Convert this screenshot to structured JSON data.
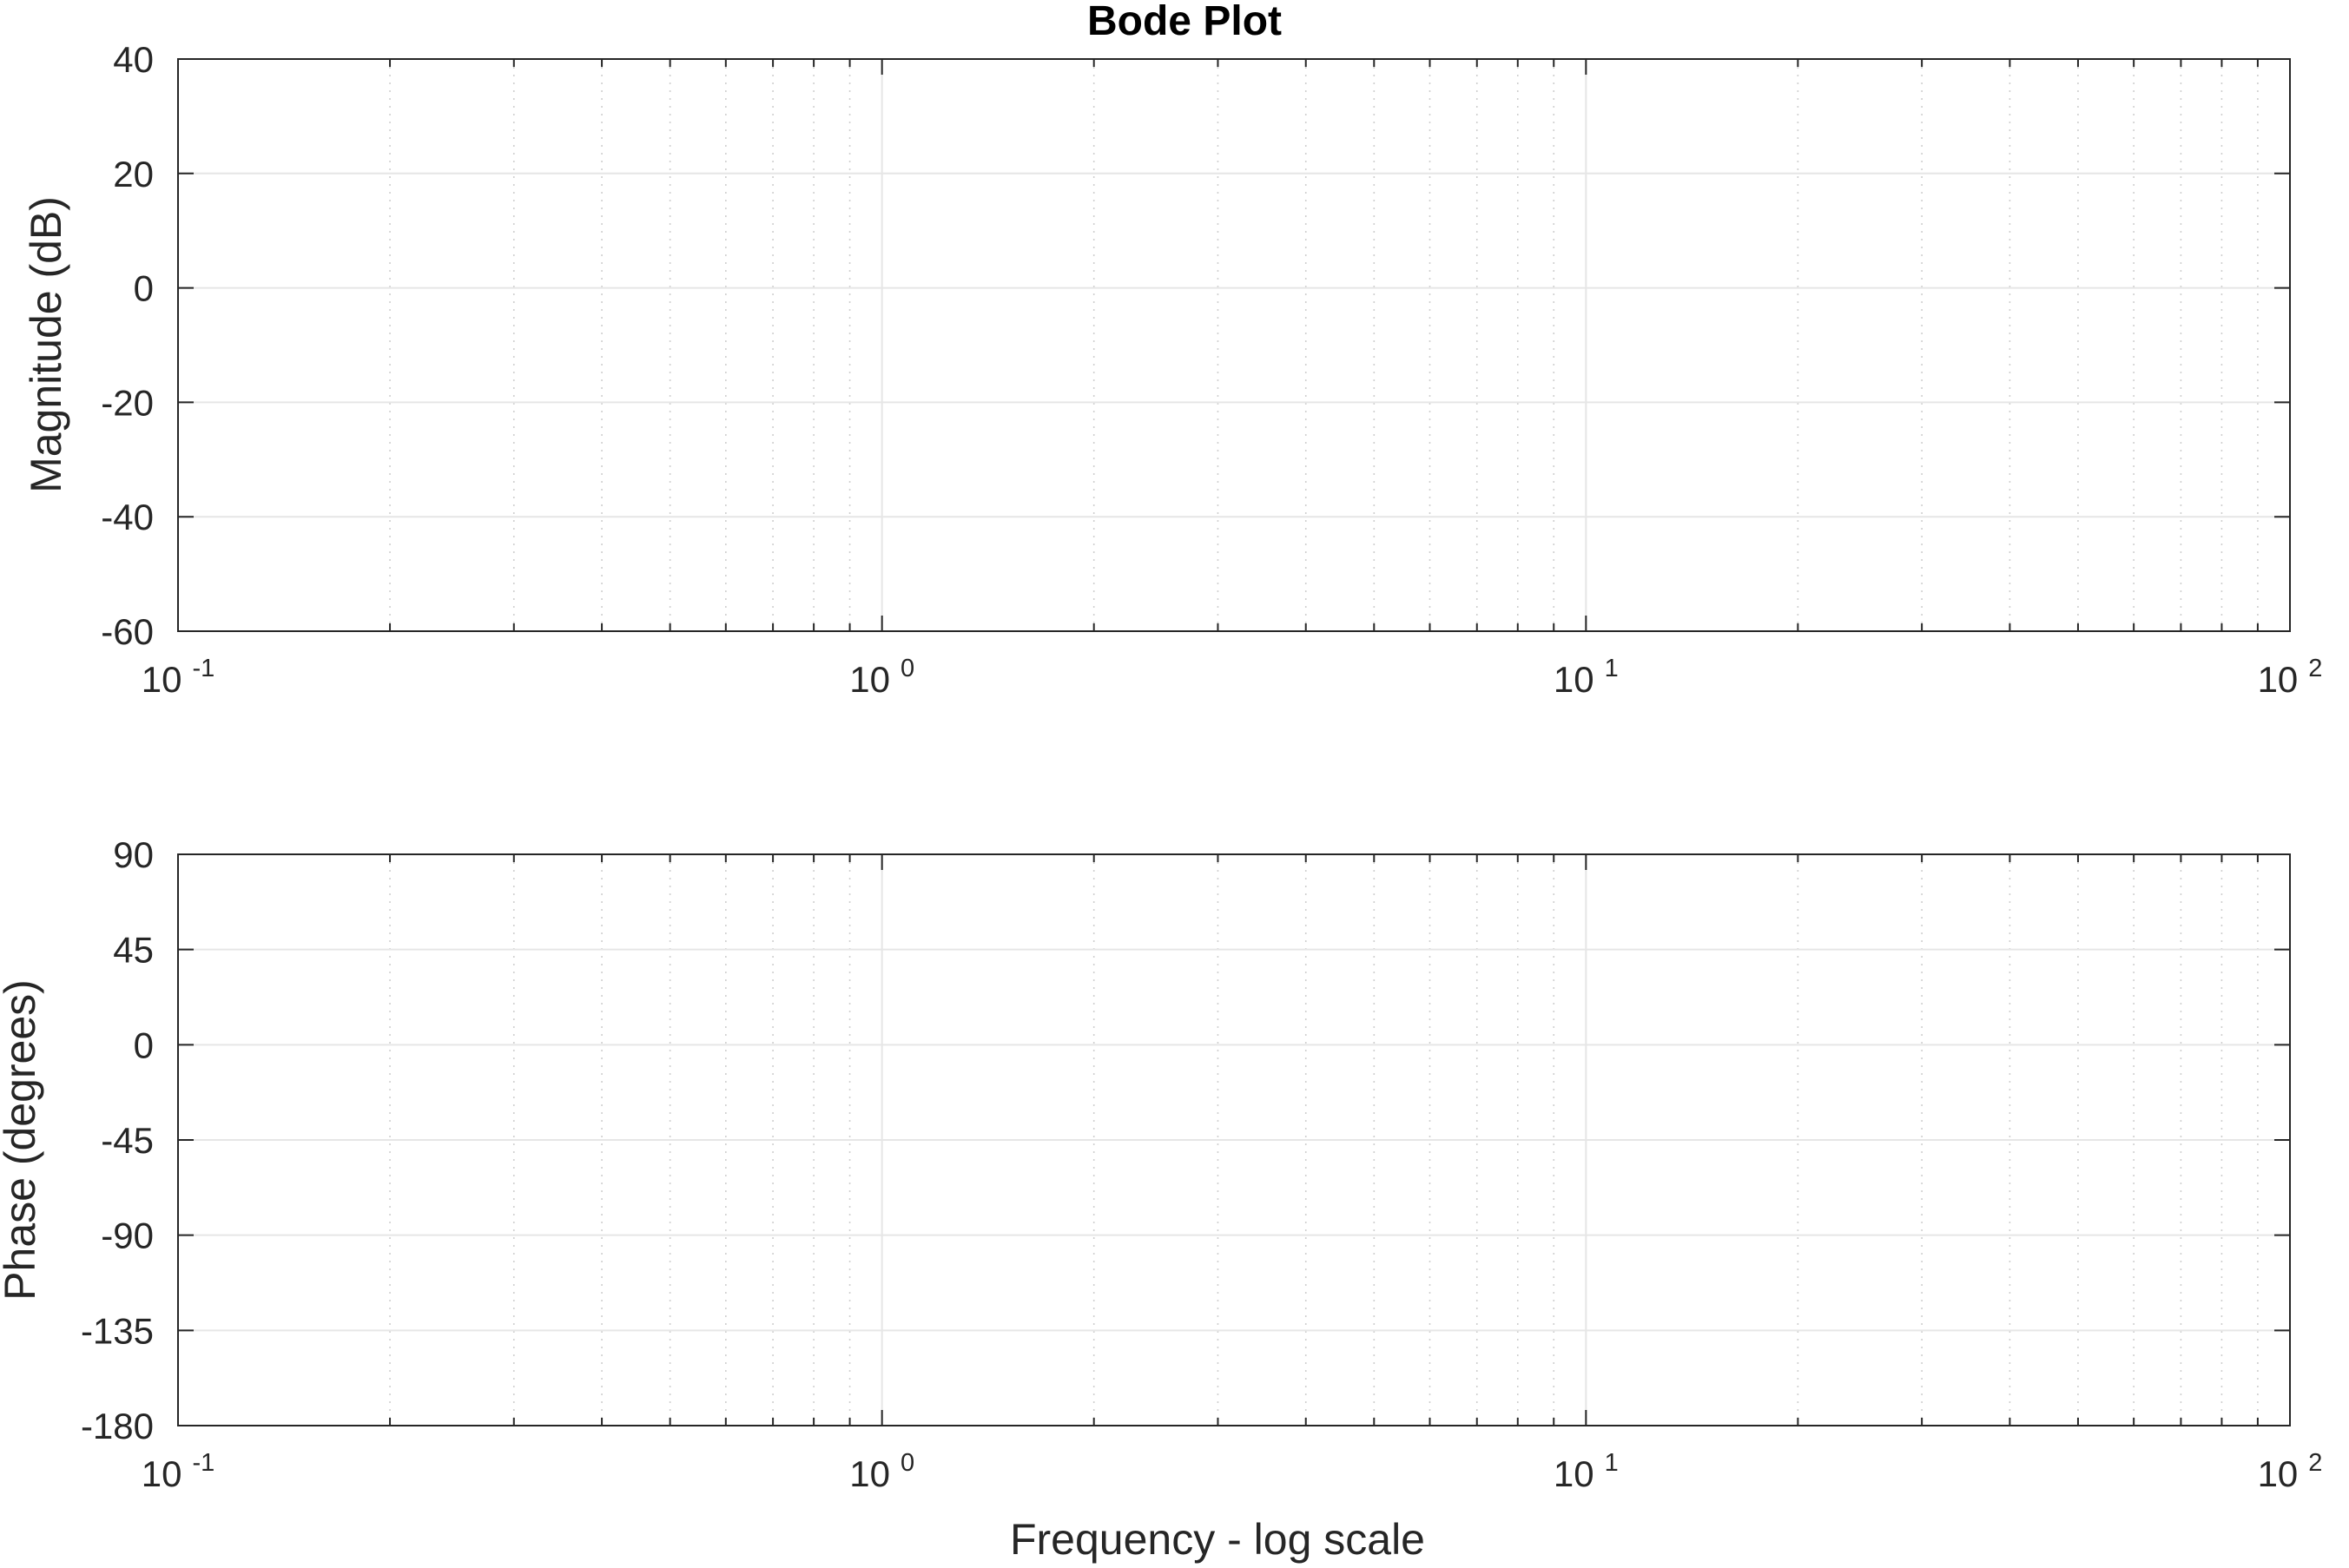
{
  "chart_data": [
    {
      "type": "line",
      "title": "Bode Plot",
      "xlabel": "",
      "ylabel": "Magnitude (dB)",
      "xscale": "log",
      "xlim": [
        0.1,
        100
      ],
      "ylim": [
        -60,
        40
      ],
      "yticks": [
        "40",
        "20",
        "0",
        "-20",
        "-40",
        "-60"
      ],
      "xticks": [
        {
          "base": "10",
          "exp": "-1"
        },
        {
          "base": "10",
          "exp": "0"
        },
        {
          "base": "10",
          "exp": "1"
        },
        {
          "base": "10",
          "exp": "2"
        }
      ],
      "grid": true,
      "series": []
    },
    {
      "type": "line",
      "title": "",
      "xlabel": "Frequency - log scale",
      "ylabel": "Phase (degrees)",
      "xscale": "log",
      "xlim": [
        0.1,
        100
      ],
      "ylim": [
        -180,
        90
      ],
      "yticks": [
        "90",
        "45",
        "0",
        "-45",
        "-90",
        "-135",
        "-180"
      ],
      "xticks": [
        {
          "base": "10",
          "exp": "-1"
        },
        {
          "base": "10",
          "exp": "0"
        },
        {
          "base": "10",
          "exp": "1"
        },
        {
          "base": "10",
          "exp": "2"
        }
      ],
      "grid": true,
      "series": []
    }
  ]
}
